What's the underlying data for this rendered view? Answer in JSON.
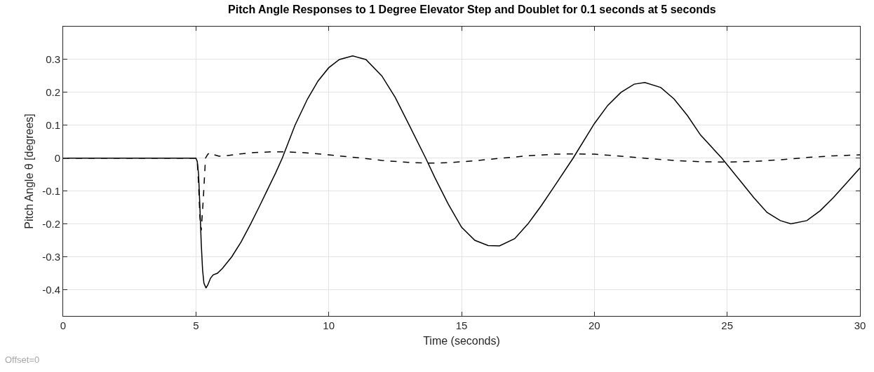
{
  "chart_data": {
    "type": "line",
    "title": "Pitch Angle Responses to 1 Degree Elevator Step and Doublet for 0.1 seconds at 5 seconds",
    "xlabel": "Time (seconds)",
    "ylabel": "Pitch Angle θ [degrees]",
    "annotations": [
      "Offset=0"
    ],
    "xlim": [
      0,
      30
    ],
    "ylim": [
      -0.48,
      0.4
    ],
    "xticks": [
      0,
      5,
      10,
      15,
      20,
      25,
      30
    ],
    "yticks": [
      -0.4,
      -0.3,
      -0.2,
      -0.1,
      0,
      0.1,
      0.2,
      0.3
    ],
    "grid": true,
    "marker": "none",
    "series": [
      {
        "color": "#000000",
        "line_style": "solid",
        "x": [
          0,
          5,
          5.05,
          5.1,
          5.15,
          5.2,
          5.25,
          5.3,
          5.38,
          5.45,
          5.55,
          5.65,
          5.81,
          6.0,
          6.35,
          6.7,
          7.06,
          7.4,
          7.67,
          8.0,
          8.25,
          8.73,
          9.2,
          9.6,
          10.0,
          10.4,
          10.9,
          11.4,
          12.0,
          12.5,
          13.0,
          13.65,
          14.0,
          14.5,
          15.0,
          15.5,
          16.0,
          16.43,
          17.0,
          17.5,
          18.0,
          18.5,
          19.2,
          20.0,
          20.5,
          21.0,
          21.5,
          21.9,
          22.5,
          23.0,
          23.5,
          24.0,
          24.8,
          25.5,
          26.0,
          26.5,
          27.0,
          27.4,
          28.0,
          28.5,
          29.0,
          29.5,
          30.0
        ],
        "values": [
          0,
          0,
          -0.01,
          -0.05,
          -0.15,
          -0.26,
          -0.34,
          -0.38,
          -0.395,
          -0.385,
          -0.365,
          -0.355,
          -0.35,
          -0.335,
          -0.3,
          -0.255,
          -0.2,
          -0.145,
          -0.1,
          -0.045,
          0,
          0.1,
          0.18,
          0.235,
          0.275,
          0.3,
          0.311,
          0.3,
          0.25,
          0.185,
          0.105,
          0,
          -0.06,
          -0.14,
          -0.21,
          -0.25,
          -0.266,
          -0.267,
          -0.245,
          -0.2,
          -0.145,
          -0.085,
          0,
          0.105,
          0.16,
          0.2,
          0.225,
          0.23,
          0.215,
          0.18,
          0.13,
          0.07,
          0,
          -0.07,
          -0.12,
          -0.165,
          -0.19,
          -0.2,
          -0.19,
          -0.16,
          -0.12,
          -0.075,
          -0.03
        ]
      },
      {
        "color": "#000000",
        "line_style": "dashed",
        "x": [
          0,
          5,
          5.05,
          5.1,
          5.15,
          5.2,
          5.28,
          5.36,
          5.45,
          5.54,
          5.7,
          5.87,
          6.2,
          6.66,
          7.2,
          7.8,
          8.4,
          9.0,
          10.0,
          11.0,
          12.0,
          13.0,
          13.8,
          14.5,
          15.5,
          16.5,
          17.5,
          18.5,
          19.2,
          20.0,
          21.0,
          22.0,
          23.0,
          24.0,
          25.0,
          26.0,
          27.0,
          28.0,
          29.0,
          30.0
        ],
        "values": [
          0,
          0,
          -0.01,
          -0.08,
          -0.18,
          -0.22,
          -0.12,
          0,
          0.012,
          0.017,
          0.01,
          0.006,
          0.008,
          0.013,
          0.017,
          0.019,
          0.019,
          0.017,
          0.01,
          0.002,
          -0.007,
          -0.013,
          -0.015,
          -0.014,
          -0.008,
          0,
          0.007,
          0.012,
          0.013,
          0.012,
          0.006,
          -0.001,
          -0.007,
          -0.011,
          -0.012,
          -0.01,
          -0.005,
          0.002,
          0.007,
          0.01
        ]
      }
    ]
  }
}
